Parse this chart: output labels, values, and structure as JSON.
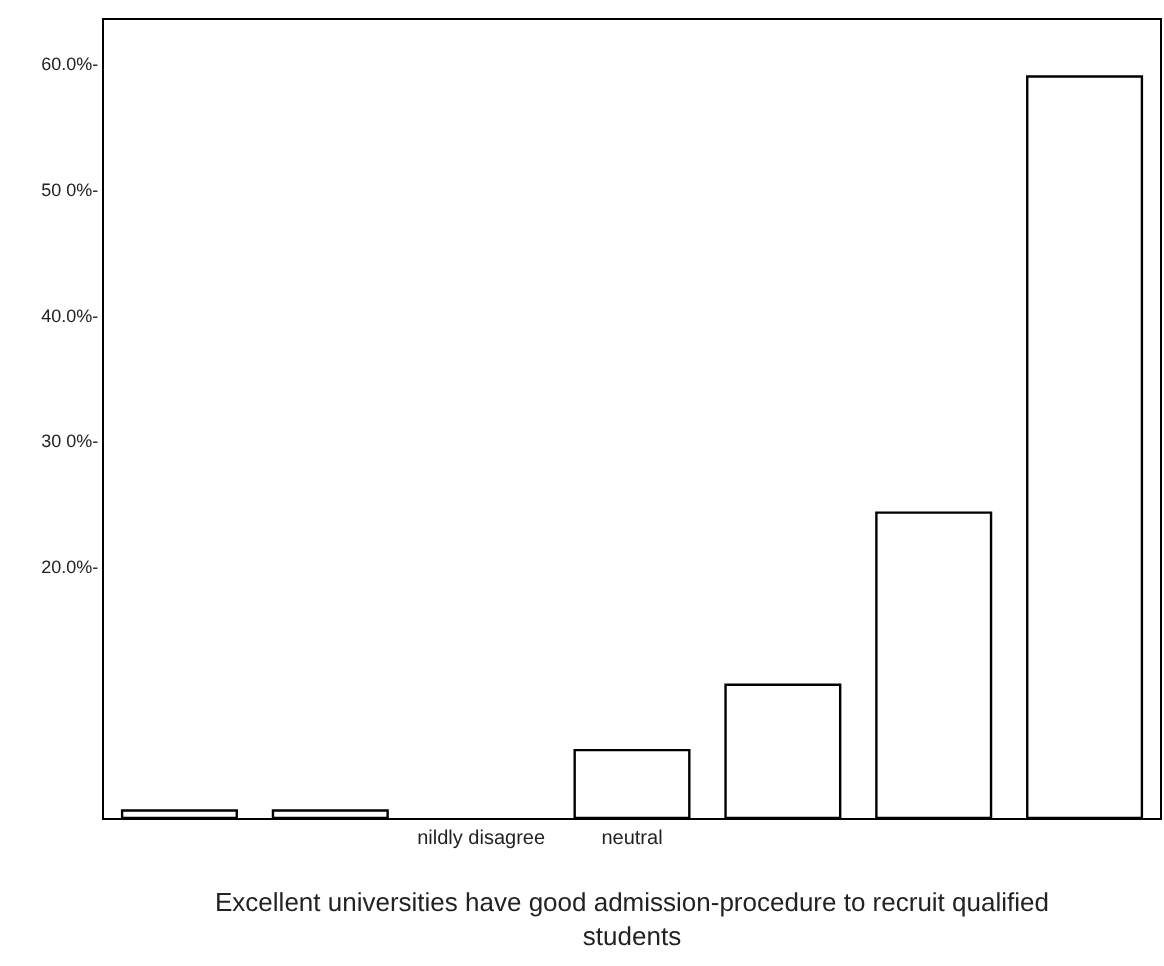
{
  "chart_data": {
    "type": "bar",
    "xlabel": "Excellent universities have good admission-procedure to recruit qualified students",
    "categories": [
      null,
      null,
      "nildly disagree",
      "neutral",
      null,
      null,
      null
    ],
    "values": [
      0.6,
      0.6,
      null,
      5.4,
      10.6,
      24.3,
      59.0
    ],
    "color": "#ffffff",
    "ylim": [
      0,
      63.5
    ],
    "yticks": [
      {
        "value": 20,
        "label": "20.0%-"
      },
      {
        "value": 30,
        "label": "30 0%-"
      },
      {
        "value": 40,
        "label": "40.0%-"
      },
      {
        "value": 50,
        "label": "50 0%-"
      },
      {
        "value": 60,
        "label": "60.0%-"
      }
    ]
  }
}
